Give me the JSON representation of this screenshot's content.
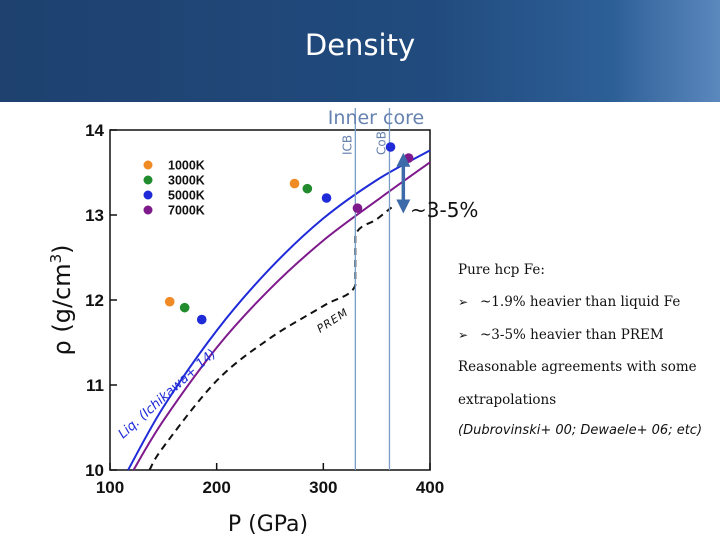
{
  "slide": {
    "title": "Density",
    "notes": {
      "heading": "Pure hcp Fe:",
      "bullets": [
        "~1.9% heavier than liquid Fe",
        "~3-5% heavier than PREM"
      ],
      "text1": "Reasonable agreements with some",
      "text2": "extrapolations",
      "refs_open": "(",
      "refs": "Dubrovinski+ 00; Dewaele+ 06; etc",
      "refs_close": ")"
    }
  },
  "colors": {
    "header": "#214b7e",
    "c1000K": "#f08a24",
    "c3000K": "#228b2e",
    "c5000K": "#1f2bd8",
    "c7000K": "#7e1a8c",
    "boundary": "#7a9cc6",
    "arrow": "#3d6aa8",
    "annot": "#6682b0"
  },
  "chart_data": {
    "type": "scatter",
    "xlabel": "P (GPa)",
    "ylabel": "ρ (g/cm3)",
    "ylabel_main": "ρ (g/cm",
    "ylabel_sup": "3",
    "ylabel_close": ")",
    "xlim": [
      100,
      400
    ],
    "ylim": [
      10,
      14
    ],
    "xticks": [
      100,
      200,
      300,
      400
    ],
    "yticks": [
      10,
      11,
      12,
      13,
      14
    ],
    "legend_position": "top-left",
    "series": [
      {
        "name": "1000K",
        "color": "#f08a24",
        "points": [
          [
            156,
            11.98
          ],
          [
            273,
            13.37
          ]
        ]
      },
      {
        "name": "3000K",
        "color": "#228b2e",
        "points": [
          [
            170,
            11.91
          ],
          [
            285,
            13.31
          ]
        ]
      },
      {
        "name": "5000K",
        "color": "#1f2bd8",
        "points": [
          [
            186,
            11.77
          ],
          [
            303,
            13.2
          ],
          [
            363,
            13.8
          ]
        ]
      },
      {
        "name": "7000K",
        "color": "#7e1a8c",
        "points": [
          [
            332,
            13.08
          ],
          [
            380,
            13.67
          ]
        ]
      }
    ],
    "curves": [
      {
        "label": "",
        "color": "#1f2bd8",
        "style": "solid",
        "points": [
          [
            117,
            10
          ],
          [
            150,
            10.74
          ],
          [
            200,
            11.64
          ],
          [
            250,
            12.37
          ],
          [
            300,
            12.96
          ],
          [
            350,
            13.41
          ],
          [
            400,
            13.76
          ]
        ]
      },
      {
        "label": "",
        "color": "#7e1a8c",
        "style": "solid",
        "points": [
          [
            122,
            10
          ],
          [
            150,
            10.58
          ],
          [
            200,
            11.44
          ],
          [
            250,
            12.13
          ],
          [
            300,
            12.7
          ],
          [
            350,
            13.17
          ],
          [
            400,
            13.62
          ]
        ]
      },
      {
        "label": "PREM",
        "color": "#111111",
        "style": "dashed",
        "points": [
          [
            137,
            10
          ],
          [
            150,
            10.27
          ],
          [
            200,
            11.05
          ],
          [
            250,
            11.55
          ],
          [
            300,
            11.93
          ],
          [
            330,
            12.17
          ],
          [
            330,
            12.76
          ],
          [
            350,
            12.95
          ],
          [
            364,
            13.09
          ]
        ]
      }
    ],
    "boundaries": [
      {
        "label": "ICB",
        "x": 330
      },
      {
        "label": "CoB",
        "x": 362
      }
    ],
    "annotations": {
      "region": "Inner core",
      "difference": "~3-5%",
      "curve_label": "Liq. (Ichikawa+ 14)",
      "arrow_x": 375,
      "arrow_range": [
        13.1,
        13.65
      ]
    }
  }
}
